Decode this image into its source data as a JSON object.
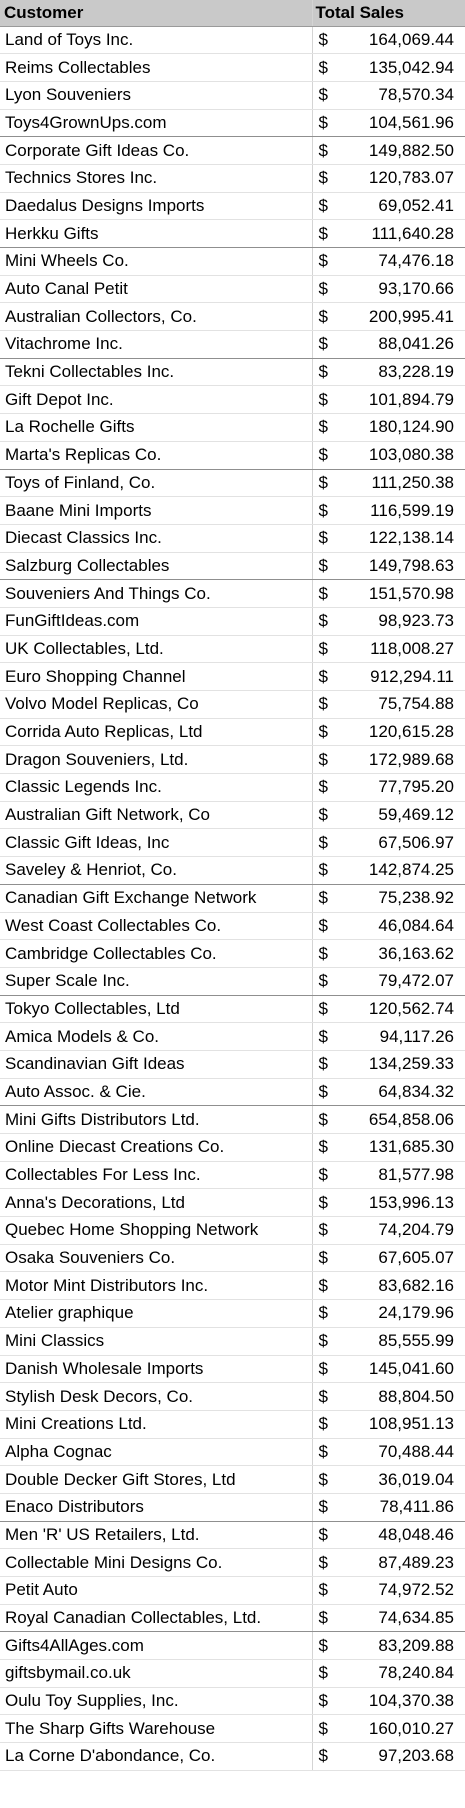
{
  "headers": {
    "customer": "Customer",
    "total_sales": "Total Sales"
  },
  "currency_symbol": "$",
  "rows": [
    {
      "customer": "Land of Toys Inc.",
      "sales": "164,069.44"
    },
    {
      "customer": "Reims Collectables",
      "sales": "135,042.94"
    },
    {
      "customer": "Lyon Souveniers",
      "sales": "78,570.34"
    },
    {
      "customer": "Toys4GrownUps.com",
      "sales": "104,561.96"
    },
    {
      "customer": "Corporate Gift Ideas Co.",
      "sales": "149,882.50"
    },
    {
      "customer": "Technics Stores Inc.",
      "sales": "120,783.07"
    },
    {
      "customer": "Daedalus Designs Imports",
      "sales": "69,052.41"
    },
    {
      "customer": "Herkku Gifts",
      "sales": "111,640.28"
    },
    {
      "customer": "Mini Wheels Co.",
      "sales": "74,476.18"
    },
    {
      "customer": "Auto Canal Petit",
      "sales": "93,170.66"
    },
    {
      "customer": "Australian Collectors, Co.",
      "sales": "200,995.41"
    },
    {
      "customer": "Vitachrome Inc.",
      "sales": "88,041.26"
    },
    {
      "customer": "Tekni Collectables Inc.",
      "sales": "83,228.19"
    },
    {
      "customer": "Gift Depot Inc.",
      "sales": "101,894.79"
    },
    {
      "customer": "La Rochelle Gifts",
      "sales": "180,124.90"
    },
    {
      "customer": "Marta's Replicas Co.",
      "sales": "103,080.38"
    },
    {
      "customer": "Toys of Finland, Co.",
      "sales": "111,250.38"
    },
    {
      "customer": "Baane Mini Imports",
      "sales": "116,599.19"
    },
    {
      "customer": "Diecast Classics Inc.",
      "sales": "122,138.14"
    },
    {
      "customer": "Salzburg Collectables",
      "sales": "149,798.63"
    },
    {
      "customer": "Souveniers And Things Co.",
      "sales": "151,570.98"
    },
    {
      "customer": "FunGiftIdeas.com",
      "sales": "98,923.73"
    },
    {
      "customer": "UK Collectables, Ltd.",
      "sales": "118,008.27"
    },
    {
      "customer": "Euro Shopping Channel",
      "sales": "912,294.11"
    },
    {
      "customer": "Volvo Model Replicas, Co",
      "sales": "75,754.88"
    },
    {
      "customer": "Corrida Auto Replicas, Ltd",
      "sales": "120,615.28"
    },
    {
      "customer": "Dragon Souveniers, Ltd.",
      "sales": "172,989.68"
    },
    {
      "customer": "Classic Legends Inc.",
      "sales": "77,795.20"
    },
    {
      "customer": "Australian Gift Network, Co",
      "sales": "59,469.12"
    },
    {
      "customer": "Classic Gift Ideas, Inc",
      "sales": "67,506.97"
    },
    {
      "customer": "Saveley & Henriot, Co.",
      "sales": "142,874.25"
    },
    {
      "customer": "Canadian Gift Exchange Network",
      "sales": "75,238.92"
    },
    {
      "customer": "West Coast Collectables Co.",
      "sales": "46,084.64"
    },
    {
      "customer": "Cambridge Collectables Co.",
      "sales": "36,163.62"
    },
    {
      "customer": "Super Scale Inc.",
      "sales": "79,472.07"
    },
    {
      "customer": "Tokyo Collectables, Ltd",
      "sales": "120,562.74"
    },
    {
      "customer": "Amica Models & Co.",
      "sales": "94,117.26"
    },
    {
      "customer": "Scandinavian Gift Ideas",
      "sales": "134,259.33"
    },
    {
      "customer": "Auto Assoc. & Cie.",
      "sales": "64,834.32"
    },
    {
      "customer": "Mini Gifts Distributors Ltd.",
      "sales": "654,858.06"
    },
    {
      "customer": "Online Diecast Creations Co.",
      "sales": "131,685.30"
    },
    {
      "customer": "Collectables For Less Inc.",
      "sales": "81,577.98"
    },
    {
      "customer": "Anna's Decorations, Ltd",
      "sales": "153,996.13"
    },
    {
      "customer": "Quebec Home Shopping Network",
      "sales": "74,204.79"
    },
    {
      "customer": "Osaka Souveniers Co.",
      "sales": "67,605.07"
    },
    {
      "customer": "Motor Mint Distributors Inc.",
      "sales": "83,682.16"
    },
    {
      "customer": "Atelier graphique",
      "sales": "24,179.96"
    },
    {
      "customer": "Mini Classics",
      "sales": "85,555.99"
    },
    {
      "customer": "Danish Wholesale Imports",
      "sales": "145,041.60"
    },
    {
      "customer": "Stylish Desk Decors, Co.",
      "sales": "88,804.50"
    },
    {
      "customer": "Mini Creations Ltd.",
      "sales": "108,951.13"
    },
    {
      "customer": "Alpha Cognac",
      "sales": "70,488.44"
    },
    {
      "customer": "Double Decker Gift Stores, Ltd",
      "sales": "36,019.04"
    },
    {
      "customer": "Enaco Distributors",
      "sales": "78,411.86"
    },
    {
      "customer": "Men 'R' US Retailers, Ltd.",
      "sales": "48,048.46"
    },
    {
      "customer": "Collectable Mini Designs Co.",
      "sales": "87,489.23"
    },
    {
      "customer": "Petit Auto",
      "sales": "74,972.52"
    },
    {
      "customer": "Royal Canadian Collectables, Ltd.",
      "sales": "74,634.85"
    },
    {
      "customer": "Gifts4AllAges.com",
      "sales": "83,209.88"
    },
    {
      "customer": "giftsbymail.co.uk",
      "sales": "78,240.84"
    },
    {
      "customer": "Oulu Toy Supplies, Inc.",
      "sales": "104,370.38"
    },
    {
      "customer": "The Sharp Gifts Warehouse",
      "sales": "160,010.27"
    },
    {
      "customer": "La Corne D'abondance, Co.",
      "sales": "97,203.68"
    }
  ]
}
